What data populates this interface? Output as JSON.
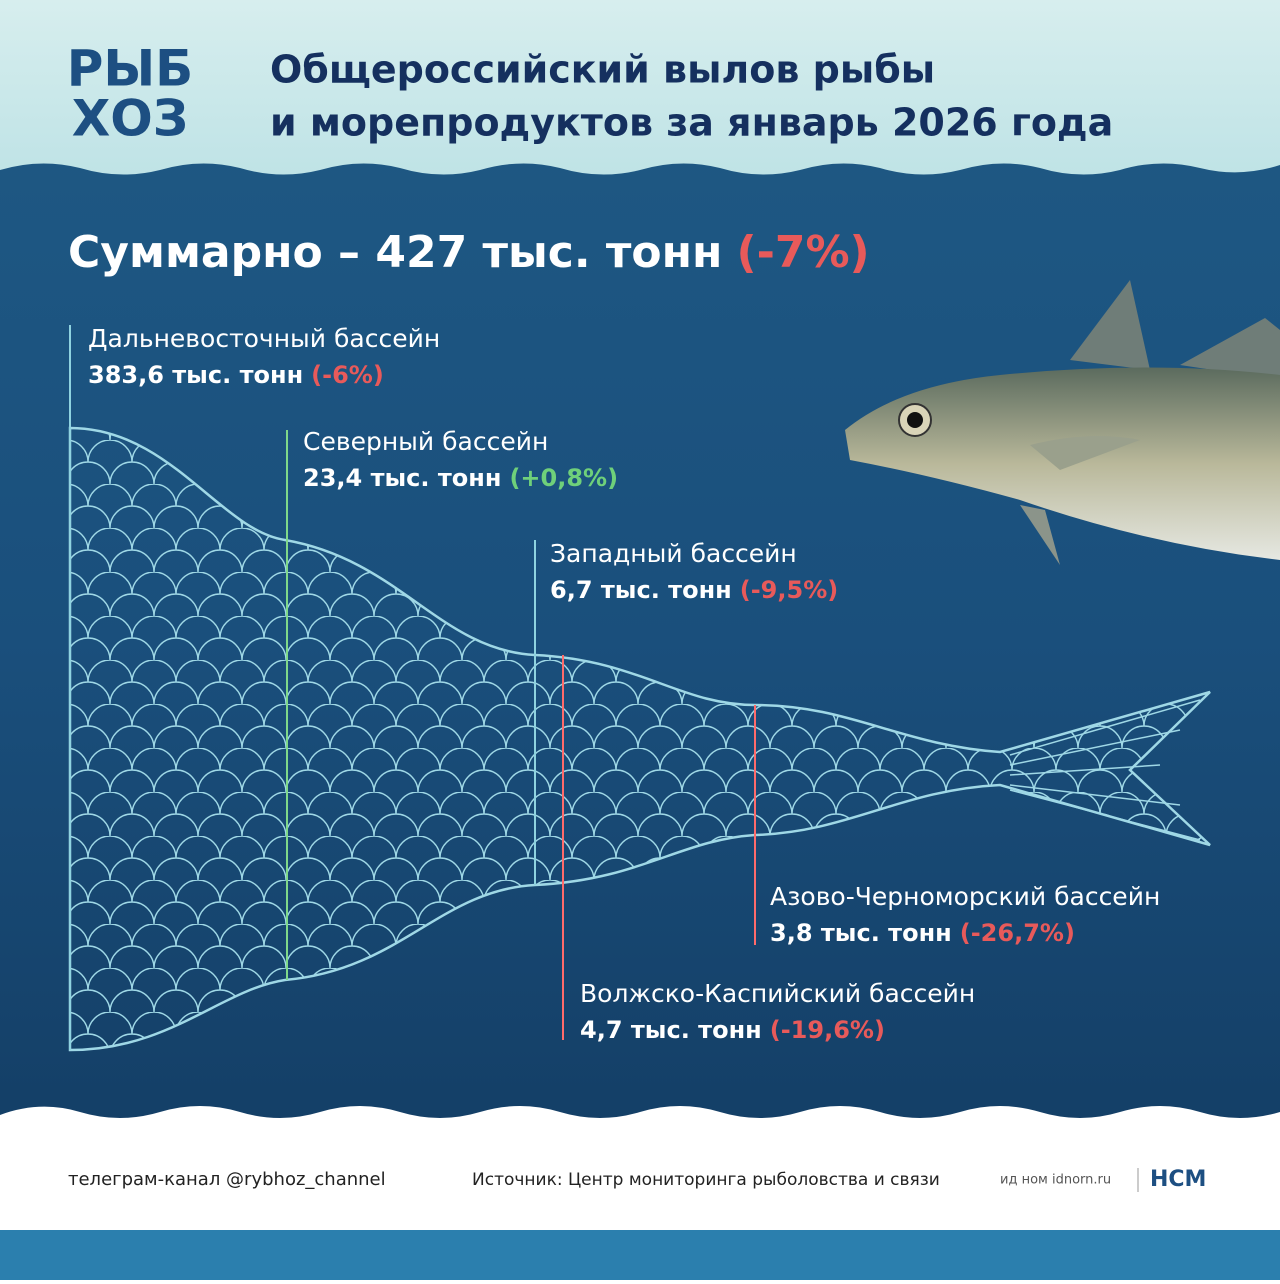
{
  "logo": {
    "line1": "РЫБ",
    "line2": "ХОЗ"
  },
  "header": {
    "title_line1": "Общероссийский вылов рыбы",
    "title_line2": "и морепродуктов за январь 2026 года"
  },
  "total": {
    "text": "Суммарно – 427 тыс. тонн",
    "change": "(-7%)",
    "change_color": "#e85a5a"
  },
  "basins": [
    {
      "name": "Дальневосточный бассейн",
      "value": "383,6 тыс. тонн",
      "change": "(-6%)",
      "change_color": "#e85a5a",
      "line_color": "#8fd3e0"
    },
    {
      "name": "Северный бассейн",
      "value": "23,4 тыс. тонн",
      "change": "(+0,8%)",
      "change_color": "#6fd07a",
      "line_color": "#7fd88a"
    },
    {
      "name": "Западный бассейн",
      "value": "6,7 тыс. тонн",
      "change": "(-9,5%)",
      "change_color": "#e85a5a",
      "line_color": "#8fd3e0"
    },
    {
      "name": "Азово-Черноморский бассейн",
      "value": "3,8 тыс. тонн",
      "change": "(-26,7%)",
      "change_color": "#e85a5a",
      "line_color": "#ff6b6b"
    },
    {
      "name": "Волжско-Каспийский бассейн",
      "value": "4,7 тыс. тонн",
      "change": "(-19,6%)",
      "change_color": "#e85a5a",
      "line_color": "#ff6b6b"
    }
  ],
  "footer": {
    "telegram": "телеграм-канал @rybhoz_channel",
    "source": "Источник: Центр мониторинга рыболовства и связи",
    "partner": "ид ном idnorn.ru",
    "brand": "НСМ"
  }
}
